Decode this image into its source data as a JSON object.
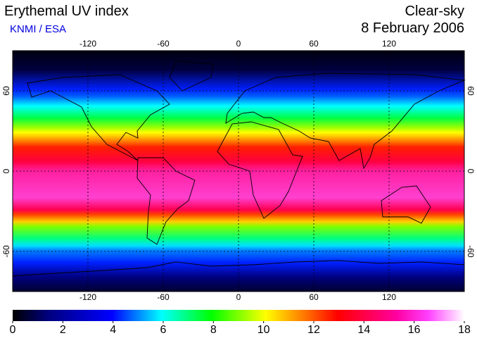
{
  "header": {
    "title": "Erythemal UV index",
    "subtitle": "KNMI / ESA",
    "condition": "Clear-sky",
    "date": "8 February 2006"
  },
  "map": {
    "xlim": [
      -180,
      180
    ],
    "ylim": [
      -90,
      90
    ],
    "xticks": [
      -120,
      -60,
      0,
      60,
      120
    ],
    "yticks": [
      -60,
      0,
      60
    ],
    "grid": true
  },
  "colorbar": {
    "lim": [
      0,
      18
    ],
    "ticks": [
      0,
      2,
      4,
      6,
      8,
      10,
      12,
      14,
      16,
      18
    ]
  }
}
